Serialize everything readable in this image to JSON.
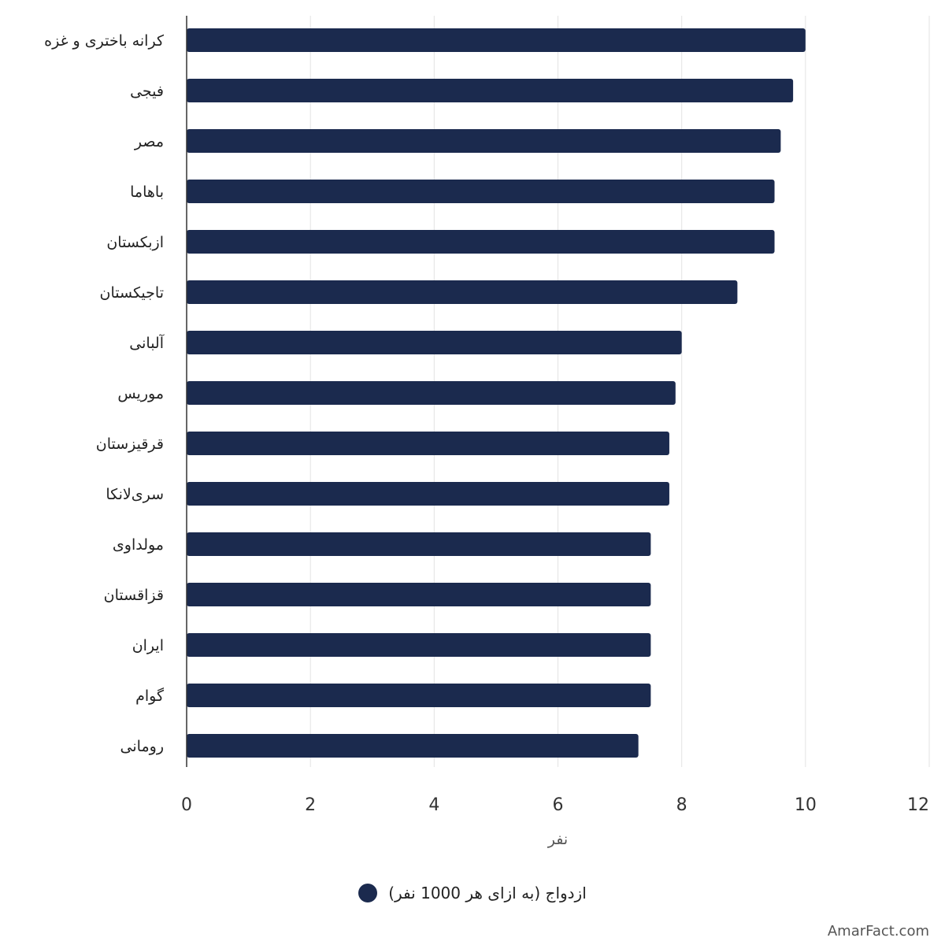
{
  "chart_data": {
    "type": "bar",
    "orientation": "horizontal",
    "categories": [
      "کرانه باختری و غزه",
      "فیجی",
      "مصر",
      "باهاما",
      "ازبکستان",
      "تاجیکستان",
      "آلبانی",
      "موریس",
      "قرقیزستان",
      "سری‌لانکا",
      "مولداوی",
      "قزاقستان",
      "ایران",
      "گوام",
      "رومانی"
    ],
    "series": [
      {
        "name": "ازدواج (به ازای هر 1000 نفر)",
        "color": "#1b2a4e",
        "values": [
          10.0,
          9.8,
          9.6,
          9.5,
          9.5,
          8.9,
          8.0,
          7.9,
          7.8,
          7.8,
          7.5,
          7.5,
          7.5,
          7.5,
          7.3
        ]
      }
    ],
    "xlabel": "نفر",
    "xlim": [
      0,
      12
    ],
    "xticks": [
      0,
      2,
      4,
      6,
      8,
      10,
      12
    ],
    "grid": true,
    "legend_position": "bottom"
  },
  "legend": {
    "label": "ازدواج (به ازای هر 1000 نفر)"
  },
  "watermark": "AmarFact.com"
}
